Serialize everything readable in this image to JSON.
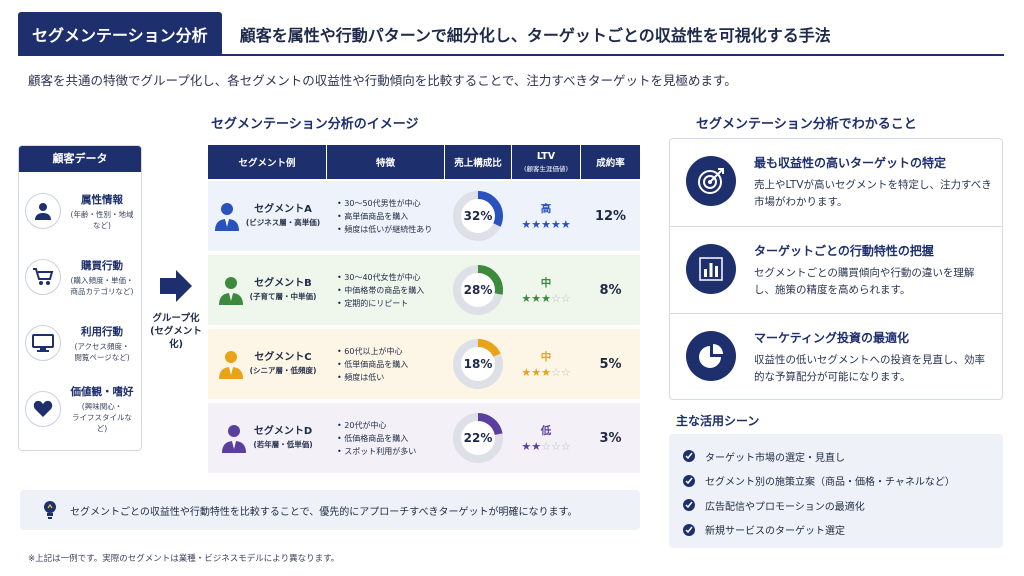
{
  "header": {
    "badge": "セグメンテーション分析",
    "subtitle": "顧客を属性や行動パターンで細分化し、ターゲットごとの収益性を可視化する手法"
  },
  "lead": "顧客を共通の特徴でグループ化し、各セグメントの収益性や行動傾向を比較することで、注力すべきターゲットを見極めます。",
  "customer_data": {
    "title": "顧客データ",
    "items": [
      {
        "title": "属性情報",
        "desc": "(年齢・性別・地域など)",
        "icon": "person-icon"
      },
      {
        "title": "購買行動",
        "desc": "(購入頻度・単価・\n商品カテゴリなど)",
        "icon": "cart-icon"
      },
      {
        "title": "利用行動",
        "desc": "(アクセス頻度・\n閲覧ページなど)",
        "icon": "monitor-icon"
      },
      {
        "title": "価値観・嗜好",
        "desc": "(興味関心・\nライフスタイルなど)",
        "icon": "heart-icon"
      }
    ]
  },
  "grouping_label": "グループ化\n(セグメント化)",
  "table": {
    "title": "セグメンテーション分析のイメージ",
    "headers": {
      "segment": "セグメント例",
      "features": "特徴",
      "share": "売上構成比",
      "ltv": "LTV",
      "ltv_sub": "(顧客生涯価値)",
      "cvr": "成約率"
    },
    "rows": [
      {
        "name": "セグメントA",
        "sub": "(ビジネス層・高単価)",
        "features": [
          "30〜50代男性が中心",
          "高単価商品を購入",
          "頻度は低いが継続性あり"
        ],
        "share": 32,
        "share_label": "32%",
        "ltv_word": "高",
        "ltv_stars": 5,
        "cvr": "12%",
        "color": "#2a52be",
        "bg": "#eef2fa"
      },
      {
        "name": "セグメントB",
        "sub": "(子育て層・中単価)",
        "features": [
          "30〜40代女性が中心",
          "中価格帯の商品を購入",
          "定期的にリピート"
        ],
        "share": 28,
        "share_label": "28%",
        "ltv_word": "中",
        "ltv_stars": 3,
        "cvr": "8%",
        "color": "#3d8a3d",
        "bg": "#eff6ec"
      },
      {
        "name": "セグメントC",
        "sub": "(シニア層・低頻度)",
        "features": [
          "60代以上が中心",
          "低単価商品を購入",
          "頻度は低い"
        ],
        "share": 18,
        "share_label": "18%",
        "ltv_word": "中",
        "ltv_stars": 3,
        "cvr": "5%",
        "color": "#e8a317",
        "bg": "#fdf6e6"
      },
      {
        "name": "セグメントD",
        "sub": "(若年層・低単価)",
        "features": [
          "20代が中心",
          "低価格商品を購入",
          "スポット利用が多い"
        ],
        "share": 22,
        "share_label": "22%",
        "ltv_word": "低",
        "ltv_stars": 2,
        "cvr": "3%",
        "color": "#5b3f9e",
        "bg": "#f3f0f8"
      }
    ]
  },
  "note": "セグメントごとの収益性や行動特性を比較することで、優先的にアプローチすべきターゲットが明確になります。",
  "footnote": "※上記は一例です。実際のセグメントは業種・ビジネスモデルにより異なります。",
  "benefits": {
    "title": "セグメンテーション分析でわかること",
    "items": [
      {
        "title": "最も収益性の高いターゲットの特定",
        "desc": "売上やLTVが高いセグメントを特定し、注力すべき市場がわかります。",
        "icon": "target-icon"
      },
      {
        "title": "ターゲットごとの行動特性の把握",
        "desc": "セグメントごとの購買傾向や行動の違いを理解し、施策の精度を高められます。",
        "icon": "bar-chart-icon"
      },
      {
        "title": "マーケティング投資の最適化",
        "desc": "収益性の低いセグメントへの投資を見直し、効率的な予算配分が可能になります。",
        "icon": "pie-chart-icon"
      }
    ]
  },
  "usage": {
    "title": "主な活用シーン",
    "items": [
      "ターゲット市場の選定・見直し",
      "セグメント別の施策立案（商品・価格・チャネルなど）",
      "広告配信やプロモーションの最適化",
      "新規サービスのターゲット選定"
    ]
  },
  "colors": {
    "navy": "#1e2f6e",
    "star_gold": "#2a52be"
  }
}
